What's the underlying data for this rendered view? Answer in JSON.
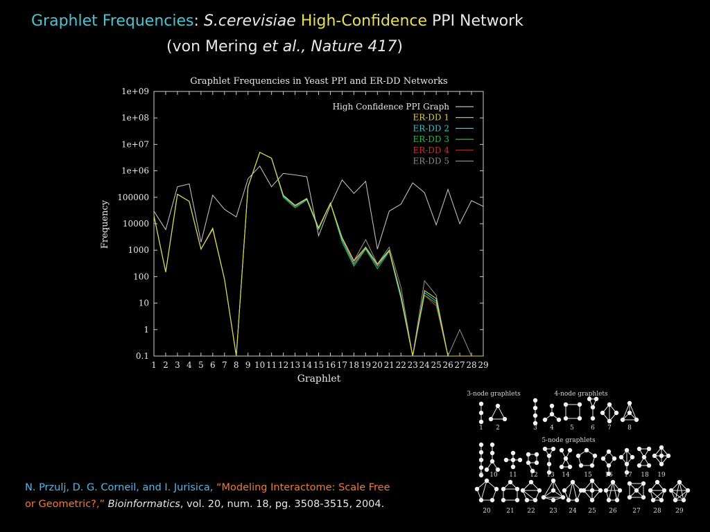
{
  "slide": {
    "title_part1": "Graphlet Frequencies",
    "title_colon": ":",
    "title_species": "S.cerevisiae",
    "title_hc": "High-Confidence",
    "title_rest": "PPI Network",
    "subtitle_open": "(von Mering",
    "subtitle_etal": "et al.,",
    "subtitle_journal": "Nature 417",
    "subtitle_close": ")"
  },
  "citation": {
    "authors": "N. Przulj, D. G. Corneil, and I. Jurisica,",
    "title_line1": "“Modeling Interactome: Scale Free",
    "title_line2": "or Geometric?,”",
    "journal": "Bioinformatics",
    "rest": ", vol. 20, num. 18, pg. 3508-3515, 2004."
  },
  "graphlets_panel": {
    "label_3node": "3-node graphlets",
    "label_4node": "4-node graphlets",
    "label_5node": "5-node graphlets",
    "numbers": [
      "1",
      "2",
      "3",
      "4",
      "5",
      "6",
      "7",
      "8",
      "9",
      "10",
      "11",
      "12",
      "13",
      "14",
      "15",
      "16",
      "17",
      "18",
      "19",
      "20",
      "21",
      "22",
      "23",
      "24",
      "25",
      "26",
      "27",
      "28",
      "29"
    ]
  },
  "chart_data": {
    "type": "line",
    "title": "Graphlet Frequencies in Yeast PPI and ER-DD Networks",
    "xlabel": "Graphlet",
    "ylabel": "Frequency",
    "yscale": "log",
    "ylim": [
      0.1,
      1000000000
    ],
    "xlim": [
      1,
      29
    ],
    "x": [
      1,
      2,
      3,
      4,
      5,
      6,
      7,
      8,
      9,
      10,
      11,
      12,
      13,
      14,
      15,
      16,
      17,
      18,
      19,
      20,
      21,
      22,
      23,
      24,
      25,
      26,
      27,
      28,
      29
    ],
    "x_tick_labels": [
      "1",
      "2",
      "3",
      "4",
      "5",
      "6",
      "7",
      "8",
      "9",
      "10",
      "11",
      "12",
      "13",
      "14",
      "15",
      "16",
      "17",
      "18",
      "19",
      "20",
      "21",
      "22",
      "23",
      "24",
      "25",
      "26",
      "27",
      "28",
      "29"
    ],
    "y_tick_labels": [
      "0.1",
      "1",
      "10",
      "100",
      "1000",
      "10000",
      "100000",
      "1e+06",
      "1e+07",
      "1e+08",
      "1e+09"
    ],
    "y_tick_values": [
      0.1,
      1,
      10,
      100,
      1000,
      10000,
      100000,
      1000000,
      10000000,
      100000000,
      1000000000
    ],
    "legend_position": "top-right",
    "series": [
      {
        "name": "High Confidence PPI Graph",
        "color": "#bdbdbd",
        "values": [
          30000,
          6000,
          250000,
          320000,
          2000,
          120000,
          35000,
          18000,
          500000,
          1500000,
          250000,
          800000,
          700000,
          600000,
          3500,
          50000,
          450000,
          140000,
          400000,
          1100,
          30000,
          55000,
          350000,
          150000,
          9000,
          200000,
          10000,
          75000,
          45000
        ]
      },
      {
        "name": "ER-DD 1",
        "color": "#e6d24a",
        "values": [
          20000,
          150,
          130000,
          70000,
          1100,
          6500,
          80,
          0.1,
          250000,
          5000000,
          3000000,
          120000,
          50000,
          90000,
          7000,
          60000,
          3000,
          400,
          1300,
          300,
          1000,
          20,
          0.1,
          30,
          15,
          0.1,
          0.1,
          0.1,
          0.1
        ]
      },
      {
        "name": "ER-DD 2",
        "color": "#3ec6cf",
        "values": [
          20000,
          150,
          130000,
          70000,
          1100,
          6500,
          80,
          0.1,
          250000,
          5000000,
          3000000,
          110000,
          45000,
          85000,
          6500,
          60000,
          2500,
          300,
          1200,
          250,
          950,
          15,
          0.1,
          25,
          12,
          0.1,
          0.1,
          0.1,
          0.1
        ]
      },
      {
        "name": "ER-DD 3",
        "color": "#2fb84a",
        "values": [
          20000,
          150,
          130000,
          70000,
          1100,
          7000,
          80,
          0.1,
          250000,
          5000000,
          3000000,
          100000,
          40000,
          80000,
          6000,
          60000,
          2000,
          250,
          1100,
          200,
          900,
          15,
          0.1,
          20,
          10,
          0.1,
          0.1,
          0.1,
          0.1
        ]
      },
      {
        "name": "ER-DD 4",
        "color": "#c8322e",
        "values": [
          20000,
          150,
          130000,
          70000,
          1100,
          6000,
          80,
          0.1,
          250000,
          5000000,
          3000000,
          110000,
          48000,
          90000,
          6500,
          60000,
          2800,
          350,
          1250,
          280,
          950,
          18,
          0.1,
          20,
          8,
          0.1,
          0.1,
          0.1,
          0.1
        ]
      },
      {
        "name": "ER-DD 5",
        "color": "#8a8a8a",
        "values": [
          20000,
          150,
          130000,
          70000,
          1100,
          6500,
          80,
          0.1,
          250000,
          5000000,
          3000000,
          110000,
          50000,
          90000,
          7000,
          60000,
          3000,
          400,
          2500,
          300,
          1300,
          40,
          0.1,
          70,
          20,
          0.1,
          1,
          0.1,
          0.1
        ]
      }
    ]
  }
}
